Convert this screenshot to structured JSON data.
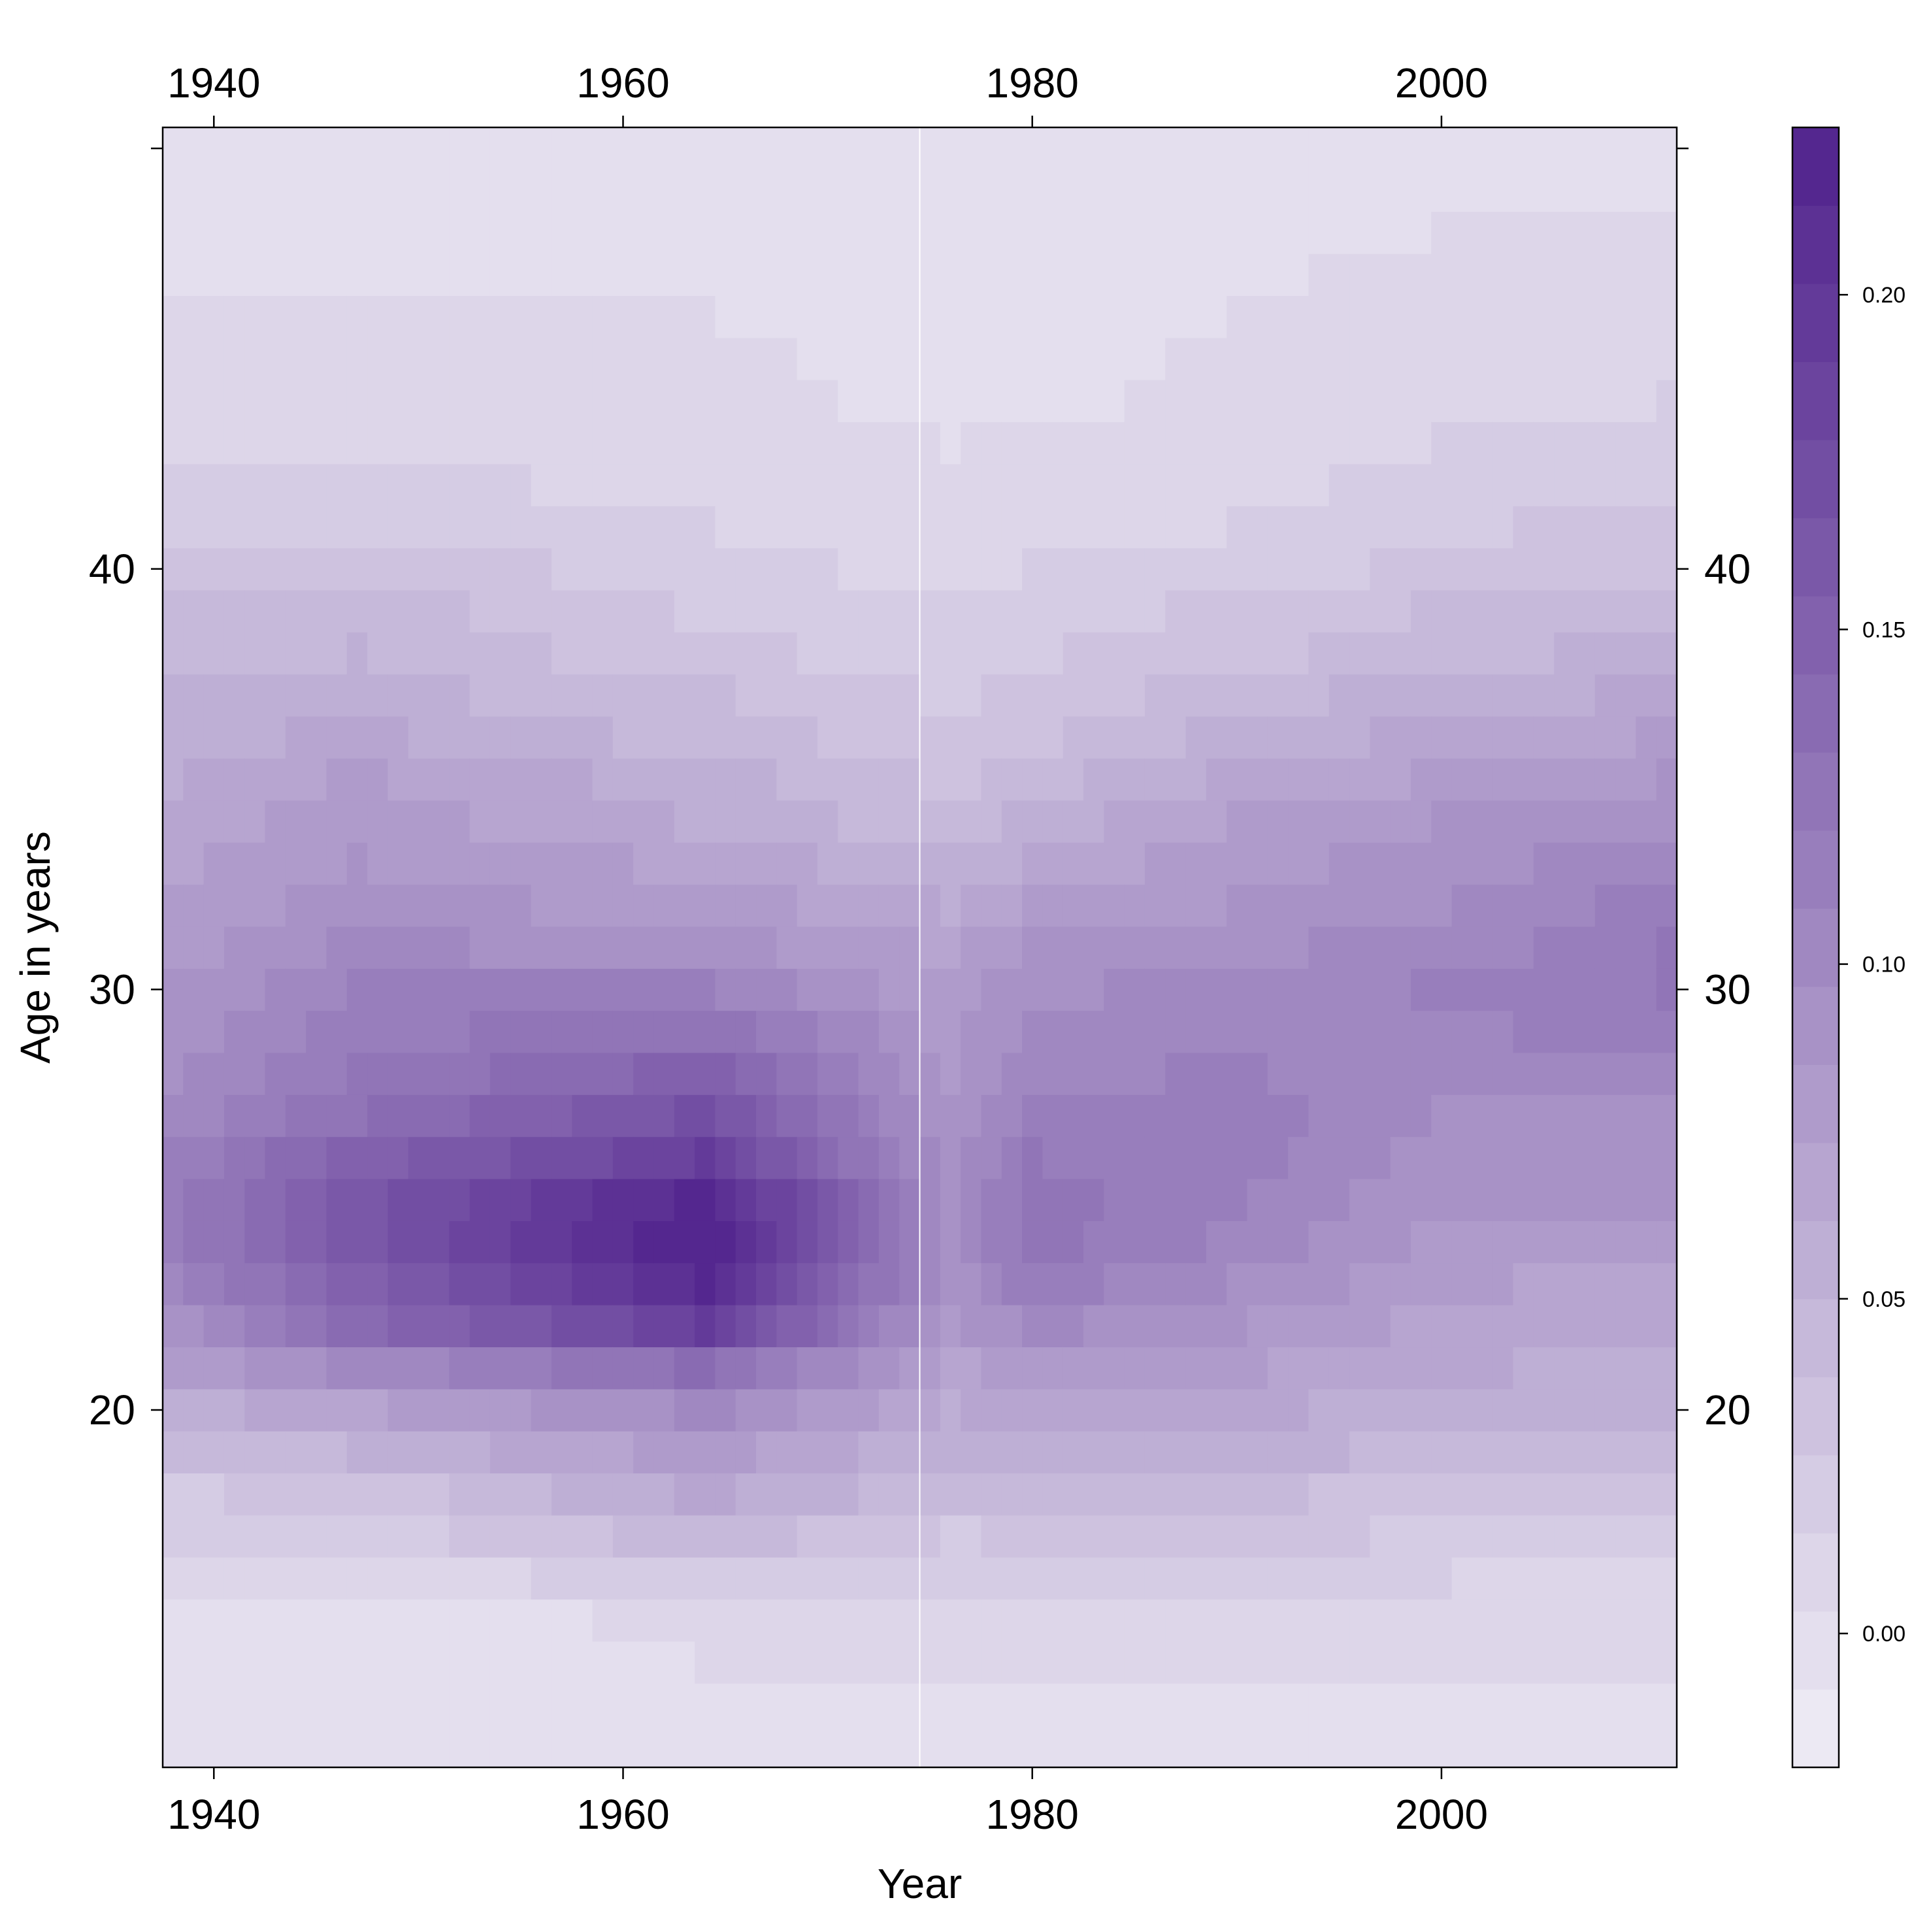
{
  "chart_data": {
    "type": "heatmap",
    "title": "",
    "xlabel": "Year",
    "ylabel": "Age in years",
    "xlim": [
      1937.5,
      2011.5
    ],
    "ylim": [
      11.5,
      50.5
    ],
    "x_ticks": [
      1940,
      1960,
      1980,
      2000
    ],
    "x_tick_labels": [
      "1940",
      "1960",
      "1980",
      "2000"
    ],
    "y_ticks": [
      20,
      30,
      40
    ],
    "y_tick_labels": [
      "20",
      "30",
      "40"
    ],
    "x_start_year": 1938,
    "x_end_year": 2011,
    "y_start_age": 12,
    "y_end_age": 50,
    "colorbar": {
      "range": [
        -0.02,
        0.225
      ],
      "ticks": [
        0.0,
        0.05,
        0.1,
        0.15,
        0.2
      ],
      "tick_labels": [
        "0.00",
        "0.05",
        "0.10",
        "0.15",
        "0.20"
      ],
      "low_color": "#ece9f3",
      "high_color": "#54278f",
      "levels": 21
    },
    "separator_year": 1974.5,
    "separator_color": "#ffffff",
    "profiles": {
      "description_ages": [
        12,
        15,
        16,
        17,
        18,
        19,
        20,
        21,
        22,
        23,
        24,
        25,
        26,
        27,
        28,
        29,
        30,
        31,
        32,
        33,
        34,
        35,
        36,
        37,
        38,
        39,
        40,
        41,
        42,
        43,
        44,
        50
      ],
      "era_1940": [
        0.0,
        0.0,
        0.005,
        0.015,
        0.025,
        0.04,
        0.055,
        0.075,
        0.09,
        0.105,
        0.115,
        0.115,
        0.11,
        0.1,
        0.095,
        0.09,
        0.085,
        0.08,
        0.075,
        0.07,
        0.065,
        0.06,
        0.055,
        0.05,
        0.045,
        0.04,
        0.03,
        0.025,
        0.02,
        0.01,
        0.005,
        0.0
      ],
      "era_1947": [
        0.0,
        0.0,
        0.01,
        0.02,
        0.03,
        0.05,
        0.07,
        0.1,
        0.14,
        0.15,
        0.16,
        0.16,
        0.15,
        0.13,
        0.12,
        0.115,
        0.11,
        0.1,
        0.09,
        0.085,
        0.08,
        0.075,
        0.065,
        0.055,
        0.05,
        0.045,
        0.035,
        0.025,
        0.02,
        0.01,
        0.005,
        0.0
      ],
      "era_1964": [
        0.0,
        0.005,
        0.02,
        0.045,
        0.065,
        0.08,
        0.1,
        0.135,
        0.19,
        0.215,
        0.225,
        0.22,
        0.19,
        0.17,
        0.15,
        0.13,
        0.11,
        0.09,
        0.08,
        0.07,
        0.06,
        0.055,
        0.045,
        0.04,
        0.03,
        0.025,
        0.02,
        0.015,
        0.01,
        0.008,
        0.005,
        0.0
      ],
      "era_1976": [
        0.0,
        0.005,
        0.015,
        0.025,
        0.04,
        0.05,
        0.06,
        0.07,
        0.08,
        0.09,
        0.095,
        0.095,
        0.09,
        0.085,
        0.08,
        0.08,
        0.075,
        0.07,
        0.06,
        0.05,
        0.04,
        0.035,
        0.03,
        0.025,
        0.02,
        0.015,
        0.01,
        0.008,
        0.005,
        0.003,
        0.002,
        0.0
      ],
      "era_1980": [
        0.0,
        0.005,
        0.02,
        0.03,
        0.045,
        0.06,
        0.07,
        0.08,
        0.1,
        0.115,
        0.125,
        0.125,
        0.12,
        0.11,
        0.105,
        0.1,
        0.095,
        0.085,
        0.075,
        0.065,
        0.055,
        0.045,
        0.035,
        0.03,
        0.025,
        0.02,
        0.015,
        0.01,
        0.008,
        0.005,
        0.002,
        0.0
      ],
      "era_1990": [
        0.0,
        0.005,
        0.015,
        0.03,
        0.04,
        0.055,
        0.065,
        0.075,
        0.085,
        0.095,
        0.105,
        0.11,
        0.115,
        0.115,
        0.11,
        0.105,
        0.1,
        0.095,
        0.085,
        0.08,
        0.075,
        0.065,
        0.055,
        0.045,
        0.035,
        0.03,
        0.02,
        0.015,
        0.01,
        0.008,
        0.005,
        0.0
      ],
      "era_2000": [
        0.0,
        0.005,
        0.015,
        0.025,
        0.035,
        0.045,
        0.055,
        0.065,
        0.07,
        0.075,
        0.08,
        0.085,
        0.09,
        0.095,
        0.1,
        0.105,
        0.11,
        0.1,
        0.095,
        0.09,
        0.085,
        0.075,
        0.065,
        0.055,
        0.045,
        0.04,
        0.03,
        0.025,
        0.02,
        0.015,
        0.01,
        0.0
      ],
      "era_2010": [
        0.0,
        0.005,
        0.01,
        0.02,
        0.03,
        0.04,
        0.05,
        0.055,
        0.065,
        0.07,
        0.075,
        0.085,
        0.09,
        0.095,
        0.105,
        0.115,
        0.12,
        0.12,
        0.115,
        0.105,
        0.095,
        0.085,
        0.075,
        0.065,
        0.055,
        0.045,
        0.035,
        0.03,
        0.025,
        0.02,
        0.015,
        0.0
      ],
      "era_years": [
        1938,
        1947,
        1964,
        1976,
        1980,
        1990,
        2000,
        2011
      ]
    }
  }
}
